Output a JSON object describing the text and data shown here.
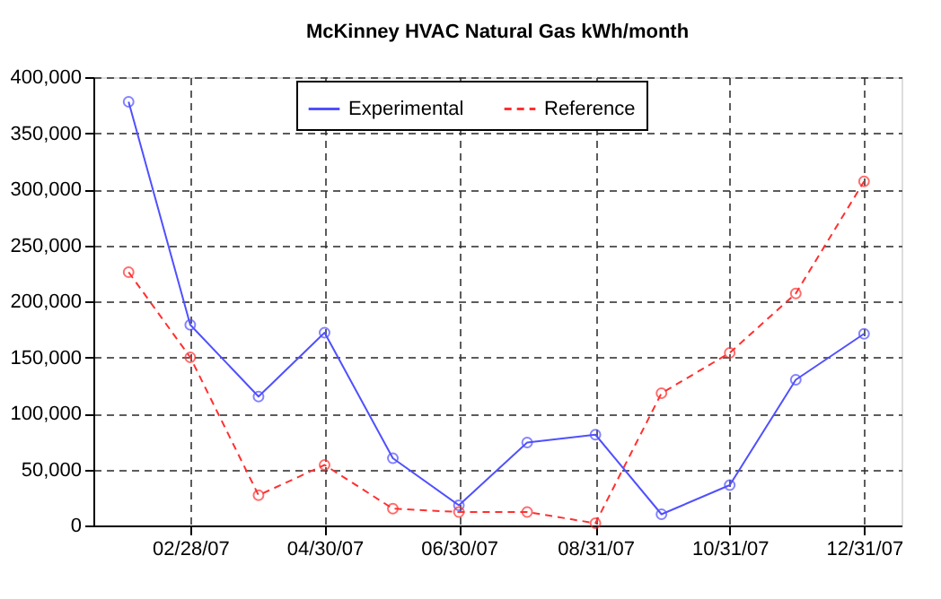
{
  "chart_data": {
    "type": "line",
    "title": "McKinney HVAC Natural Gas kWh/month",
    "x": [
      "2007-01-31",
      "2007-02-28",
      "2007-03-31",
      "2007-04-30",
      "2007-05-31",
      "2007-06-30",
      "2007-07-31",
      "2007-08-31",
      "2007-09-30",
      "2007-10-31",
      "2007-11-30",
      "2007-12-31"
    ],
    "series": [
      {
        "name": "Experimental",
        "color": "#5050ff",
        "line_style": "solid",
        "values": [
          378000,
          179000,
          115000,
          172000,
          60000,
          18000,
          74000,
          81000,
          10000,
          36000,
          130000,
          171000
        ]
      },
      {
        "name": "Reference",
        "color": "#ff3030",
        "line_style": "dashed",
        "values": [
          226000,
          150000,
          27000,
          54000,
          15000,
          12000,
          12000,
          2000,
          118000,
          154000,
          207000,
          307000
        ]
      }
    ],
    "xlim": [
      "2007-01-15",
      "2008-01-17"
    ],
    "xticks": [
      {
        "value": "2007-02-28",
        "label": "02/28/07"
      },
      {
        "value": "2007-04-30",
        "label": "04/30/07"
      },
      {
        "value": "2007-06-30",
        "label": "06/30/07"
      },
      {
        "value": "2007-08-31",
        "label": "08/31/07"
      },
      {
        "value": "2007-10-31",
        "label": "10/31/07"
      },
      {
        "value": "2007-12-31",
        "label": "12/31/07"
      }
    ],
    "ylim": [
      0,
      400000
    ],
    "yticks": [
      {
        "value": 0,
        "label": "0"
      },
      {
        "value": 50000,
        "label": "50,000"
      },
      {
        "value": 100000,
        "label": "100,000"
      },
      {
        "value": 150000,
        "label": "150,000"
      },
      {
        "value": 200000,
        "label": "200,000"
      },
      {
        "value": 250000,
        "label": "250,000"
      },
      {
        "value": 300000,
        "label": "300,000"
      },
      {
        "value": 350000,
        "label": "350,000"
      },
      {
        "value": 400000,
        "label": "400,000"
      }
    ],
    "grid": true,
    "legend": "top",
    "marker": "circle"
  }
}
